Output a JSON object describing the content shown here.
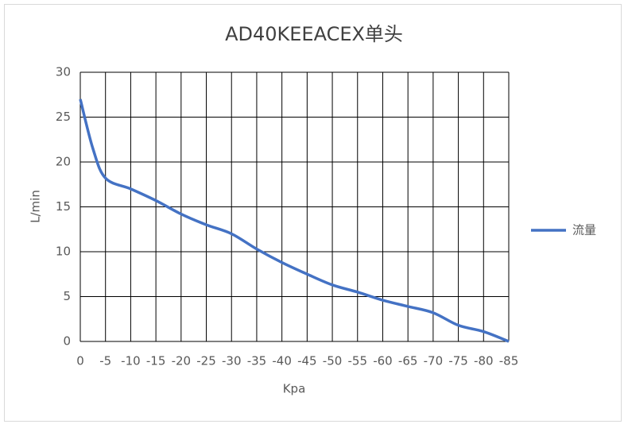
{
  "chart_data": {
    "type": "line",
    "title": "AD40KEEACEX单头",
    "x_label": "Kpa",
    "y_label": "L/min",
    "x": [
      0,
      -2.5,
      -5,
      -10,
      -15,
      -20,
      -25,
      -30,
      -35,
      -40,
      -45,
      -50,
      -55,
      -60,
      -65,
      -70,
      -75,
      -80,
      -85
    ],
    "series": [
      {
        "name": "流量",
        "color": "#4472c4",
        "values": [
          27,
          21.5,
          18.2,
          17,
          15.7,
          14.2,
          13,
          12,
          10.3,
          8.8,
          7.5,
          6.3,
          5.5,
          4.6,
          3.9,
          3.2,
          1.8,
          1.1,
          0
        ]
      }
    ],
    "xlim": [
      0,
      -85
    ],
    "xticks": [
      0,
      -5,
      -10,
      -15,
      -20,
      -25,
      -30,
      -35,
      -40,
      -45,
      -50,
      -55,
      -60,
      -65,
      -70,
      -75,
      -80,
      -85
    ],
    "ylim": [
      0,
      30
    ],
    "yticks": [
      0,
      5,
      10,
      15,
      20,
      25,
      30
    ],
    "grid": true,
    "legend": "right"
  }
}
